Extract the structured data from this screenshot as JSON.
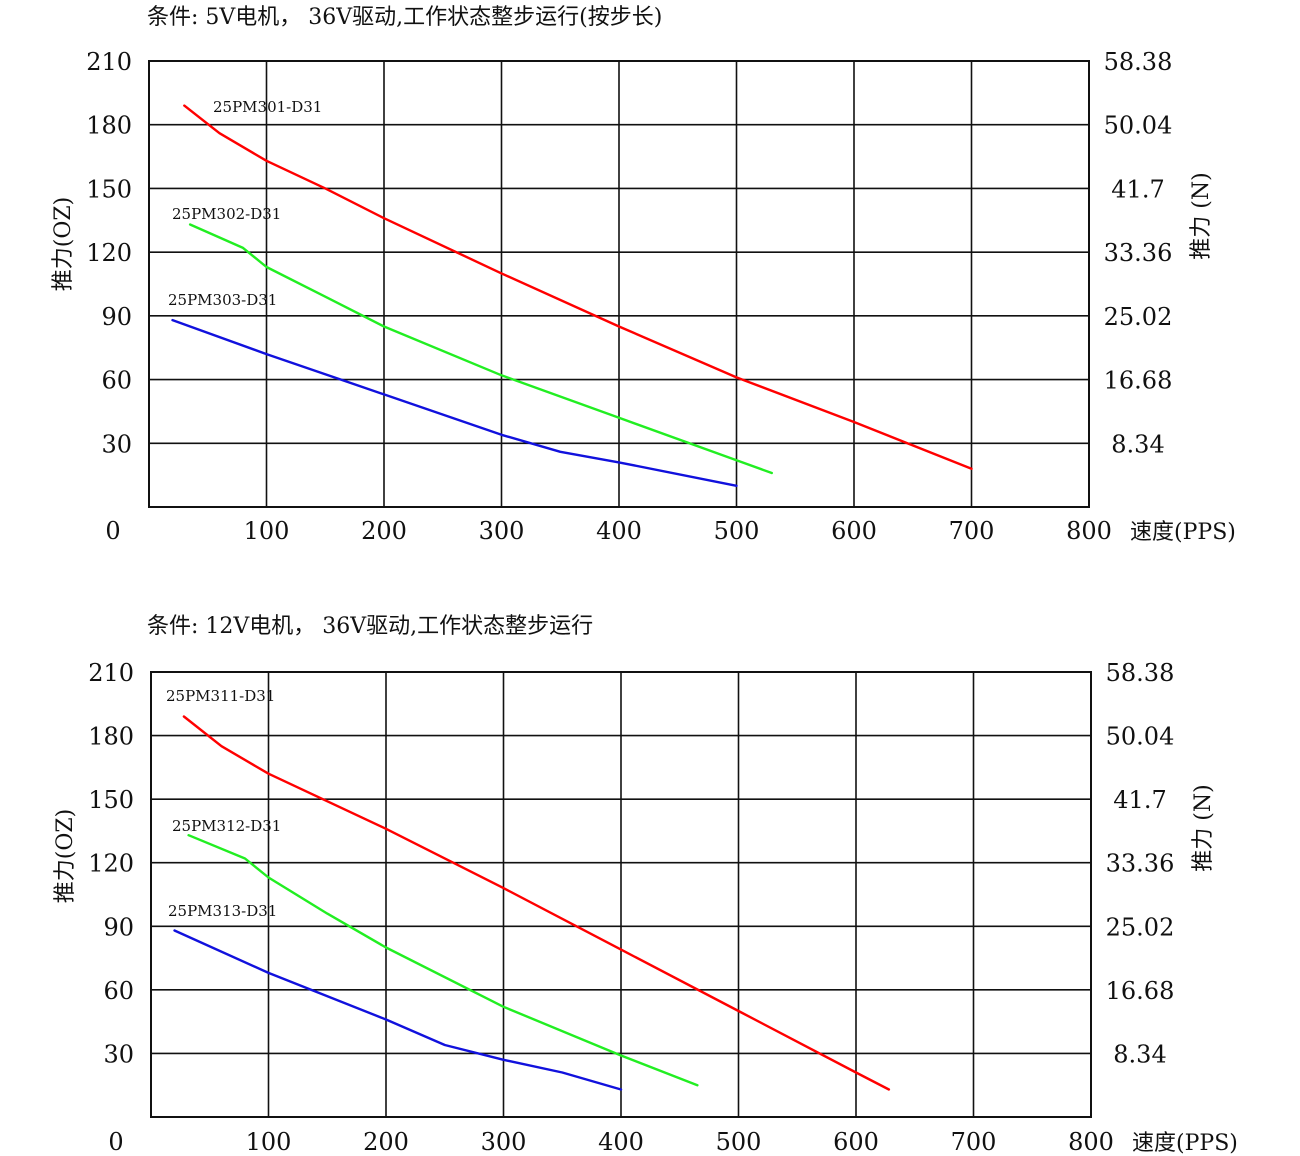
{
  "chart_data": [
    {
      "type": "line",
      "condition": "条件: 5V电机， 36V驱动,工作状态整步运行(按步长)",
      "ylabel_left": "推力(OZ)",
      "ylabel_right": "推力 (N)",
      "xlabel": "速度(PPS)",
      "xlim": [
        0,
        800
      ],
      "ylim": [
        0,
        210
      ],
      "x_ticks": [
        "100",
        "200",
        "300",
        "400",
        "500",
        "600",
        "700",
        "800"
      ],
      "y_ticks_left": [
        "30",
        "60",
        "90",
        "120",
        "150",
        "180",
        "210"
      ],
      "y_ticks_right": [
        "8.34",
        "16.68",
        "25.02",
        "33.36",
        "41.7",
        "50.04",
        "58.38"
      ],
      "origin_label": "0",
      "grid": true,
      "series": [
        {
          "name": "25PM301-D31",
          "color": "#ff0000",
          "points": [
            [
              30,
              189
            ],
            [
              60,
              176
            ],
            [
              100,
              163
            ],
            [
              150,
              150
            ],
            [
              200,
              136
            ],
            [
              300,
              110
            ],
            [
              400,
              85
            ],
            [
              500,
              61
            ],
            [
              600,
              40
            ],
            [
              700,
              18
            ]
          ]
        },
        {
          "name": "25PM302-D31",
          "color": "#22ee22",
          "points": [
            [
              35,
              133
            ],
            [
              80,
              122
            ],
            [
              100,
              113
            ],
            [
              150,
              99
            ],
            [
              200,
              85
            ],
            [
              300,
              62
            ],
            [
              400,
              42
            ],
            [
              500,
              22
            ],
            [
              530,
              16
            ]
          ]
        },
        {
          "name": "25PM303-D31",
          "color": "#1111dd",
          "points": [
            [
              20,
              88
            ],
            [
              100,
              72
            ],
            [
              200,
              53
            ],
            [
              300,
              34
            ],
            [
              350,
              26
            ],
            [
              400,
              21
            ],
            [
              500,
              10
            ]
          ]
        }
      ]
    },
    {
      "type": "line",
      "condition": "条件: 12V电机， 36V驱动,工作状态整步运行",
      "ylabel_left": "推力(OZ)",
      "ylabel_right": "推力 (N)",
      "xlabel": "速度(PPS)",
      "xlim": [
        0,
        800
      ],
      "ylim": [
        0,
        210
      ],
      "x_ticks": [
        "100",
        "200",
        "300",
        "400",
        "500",
        "600",
        "700",
        "800"
      ],
      "y_ticks_left": [
        "30",
        "60",
        "90",
        "120",
        "150",
        "180",
        "210"
      ],
      "y_ticks_right": [
        "8.34",
        "16.68",
        "25.02",
        "33.36",
        "41.7",
        "50.04",
        "58.38"
      ],
      "origin_label": "0",
      "grid": true,
      "series": [
        {
          "name": "25PM311-D31",
          "color": "#ff0000",
          "points": [
            [
              28,
              189
            ],
            [
              60,
              175
            ],
            [
              100,
              162
            ],
            [
              200,
              136
            ],
            [
              300,
              108
            ],
            [
              400,
              79
            ],
            [
              500,
              50
            ],
            [
              600,
              21
            ],
            [
              628,
              13
            ]
          ]
        },
        {
          "name": "25PM312-D31",
          "color": "#22ee22",
          "points": [
            [
              32,
              133
            ],
            [
              80,
              122
            ],
            [
              100,
              113
            ],
            [
              150,
              96
            ],
            [
              200,
              80
            ],
            [
              300,
              52
            ],
            [
              400,
              29
            ],
            [
              465,
              15
            ]
          ]
        },
        {
          "name": "25PM313-D31",
          "color": "#1111dd",
          "points": [
            [
              20,
              88
            ],
            [
              100,
              68
            ],
            [
              200,
              46
            ],
            [
              250,
              34
            ],
            [
              300,
              27
            ],
            [
              350,
              21
            ],
            [
              400,
              13
            ]
          ]
        }
      ]
    }
  ]
}
